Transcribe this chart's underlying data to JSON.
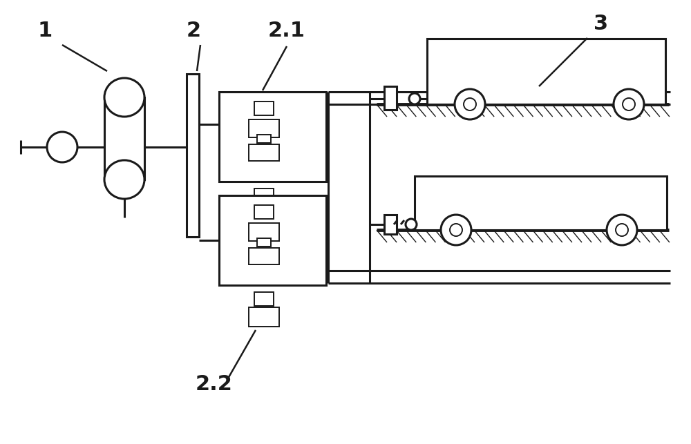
{
  "bg_color": "#ffffff",
  "line_color": "#1a1a1a",
  "lw": 2.2,
  "lw_thick": 3.5,
  "lw_thin": 1.4,
  "label_1": "1",
  "label_2": "2",
  "label_21": "2.1",
  "label_22": "2.2",
  "label_3": "3",
  "figsize": [
    10.0,
    6.43
  ],
  "dpi": 100
}
